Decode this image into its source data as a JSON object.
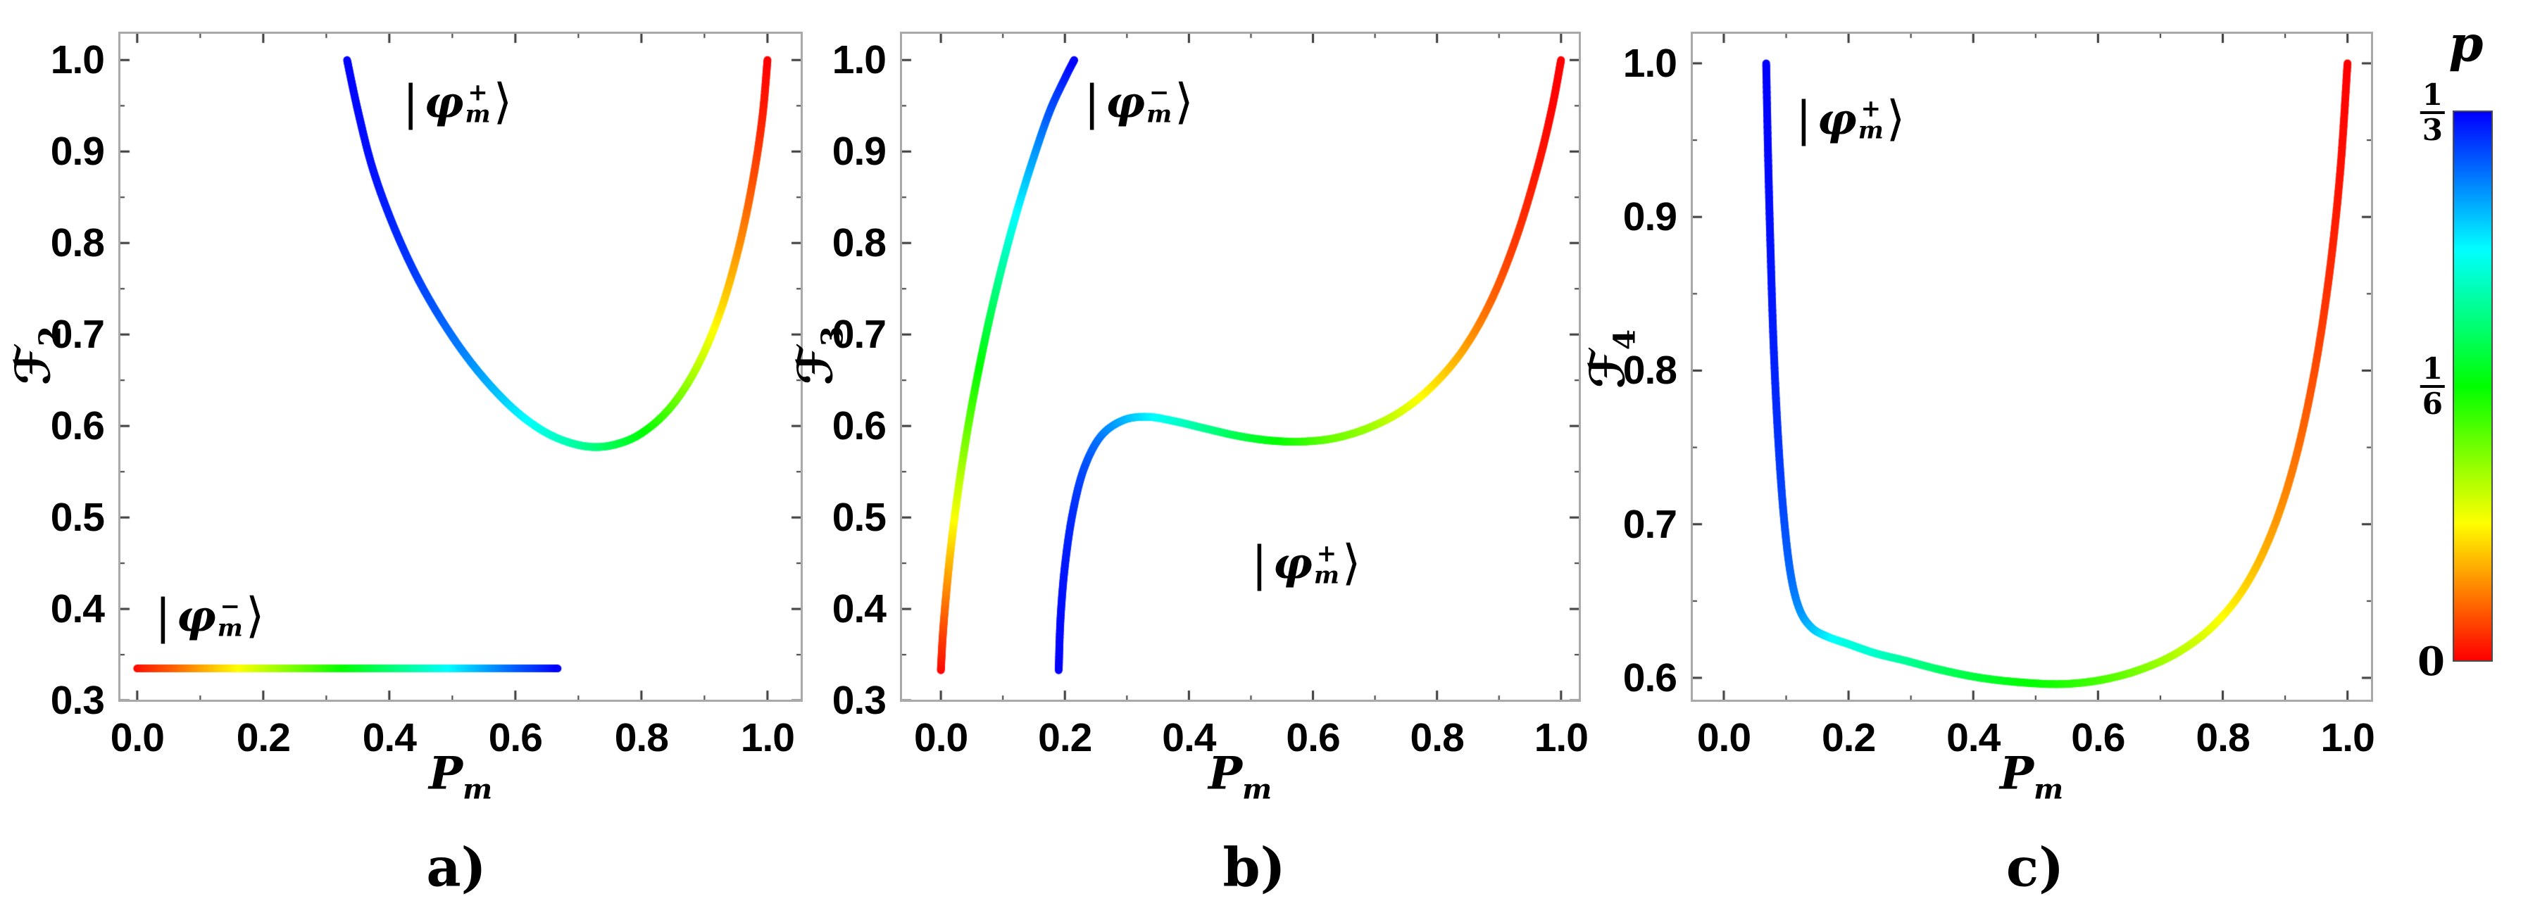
{
  "figure": {
    "background": "#ffffff",
    "panels": [
      {
        "letter": "a)"
      },
      {
        "letter": "b)"
      },
      {
        "letter": "c)"
      }
    ]
  },
  "colorbar": {
    "title": "p",
    "tick_top": {
      "num": "1",
      "den": "3"
    },
    "tick_mid": {
      "num": "1",
      "den": "6"
    },
    "tick_bottom": "0",
    "p_min": 0,
    "p_max": 0.3333,
    "orientation": "vertical",
    "colors_top_to_bottom": [
      "#0000ff",
      "#00ffff",
      "#00ff00",
      "#ffff00",
      "#ff0000"
    ]
  },
  "chart_data": [
    {
      "id": "a",
      "type": "line",
      "title": "",
      "xlabel_base": "P",
      "xlabel_sub": "m",
      "ylabel_base": "ℱ",
      "ylabel_sub": "2",
      "xlim": [
        -0.03,
        1.056
      ],
      "ylim": [
        0.2985,
        1.031
      ],
      "xticks": [
        0,
        0.2,
        0.4,
        0.6,
        0.8,
        1.0
      ],
      "xtick_labels": [
        "0.0",
        "0.2",
        "0.4",
        "0.6",
        "0.8",
        "1.0"
      ],
      "yticks": [
        0.3,
        0.4,
        0.5,
        0.6,
        0.7,
        0.8,
        0.9,
        1.0
      ],
      "ytick_labels": [
        "0.3",
        "0.4",
        "0.5",
        "0.6",
        "0.7",
        "0.8",
        "0.9",
        "1.0"
      ],
      "grid": false,
      "color_parameter": "p",
      "series": [
        {
          "name": "phi_m_plus",
          "ket": {
            "bar": "|",
            "phi": "φ",
            "sub": "m",
            "sup": "+",
            "bracket": "⟩"
          },
          "annotation_pos": {
            "x": 0.508,
            "y": 0.954
          },
          "points": [
            [
              0.333,
              1.0,
              0.333
            ],
            [
              0.35,
              0.945,
              0.331
            ],
            [
              0.372,
              0.885,
              0.328
            ],
            [
              0.4,
              0.83,
              0.323
            ],
            [
              0.435,
              0.775,
              0.316
            ],
            [
              0.473,
              0.727,
              0.306
            ],
            [
              0.515,
              0.683,
              0.293
            ],
            [
              0.558,
              0.646,
              0.277
            ],
            [
              0.603,
              0.615,
              0.258
            ],
            [
              0.648,
              0.593,
              0.24
            ],
            [
              0.69,
              0.581,
              0.224
            ],
            [
              0.728,
              0.577,
              0.208
            ],
            [
              0.765,
              0.581,
              0.19
            ],
            [
              0.8,
              0.592,
              0.172
            ],
            [
              0.838,
              0.614,
              0.148
            ],
            [
              0.872,
              0.645,
              0.122
            ],
            [
              0.903,
              0.686,
              0.096
            ],
            [
              0.932,
              0.739,
              0.07
            ],
            [
              0.958,
              0.805,
              0.046
            ],
            [
              0.978,
              0.873,
              0.026
            ],
            [
              0.992,
              0.938,
              0.011
            ],
            [
              1.0,
              1.0,
              0.0
            ]
          ]
        },
        {
          "name": "phi_m_minus",
          "ket": {
            "bar": "|",
            "phi": "φ",
            "sub": "m",
            "sup": "−",
            "bracket": "⟩"
          },
          "annotation_pos": {
            "x": 0.115,
            "y": 0.392
          },
          "points": [
            [
              0.0,
              0.335,
              0.0
            ],
            [
              0.067,
              0.335,
              0.033
            ],
            [
              0.133,
              0.335,
              0.067
            ],
            [
              0.2,
              0.335,
              0.1
            ],
            [
              0.267,
              0.335,
              0.133
            ],
            [
              0.333,
              0.335,
              0.167
            ],
            [
              0.4,
              0.335,
              0.2
            ],
            [
              0.467,
              0.335,
              0.233
            ],
            [
              0.533,
              0.335,
              0.267
            ],
            [
              0.6,
              0.335,
              0.3
            ],
            [
              0.667,
              0.335,
              0.333
            ]
          ]
        }
      ]
    },
    {
      "id": "b",
      "type": "line",
      "title": "",
      "xlabel_base": "P",
      "xlabel_sub": "m",
      "ylabel_base": "ℱ",
      "ylabel_sub": "3",
      "xlim": [
        -0.066,
        1.032
      ],
      "ylim": [
        0.2985,
        1.031
      ],
      "xticks": [
        0,
        0.2,
        0.4,
        0.6,
        0.8,
        1.0
      ],
      "xtick_labels": [
        "0.0",
        "0.2",
        "0.4",
        "0.6",
        "0.8",
        "1.0"
      ],
      "yticks": [
        0.3,
        0.4,
        0.5,
        0.6,
        0.7,
        0.8,
        0.9,
        1.0
      ],
      "ytick_labels": [
        "0.3",
        "0.4",
        "0.5",
        "0.6",
        "0.7",
        "0.8",
        "0.9",
        "1.0"
      ],
      "grid": false,
      "color_parameter": "p",
      "series": [
        {
          "name": "phi_m_minus",
          "ket": {
            "bar": "|",
            "phi": "φ",
            "sub": "m",
            "sup": "−",
            "bracket": "⟩"
          },
          "annotation_pos": {
            "x": 0.319,
            "y": 0.954
          },
          "points": [
            [
              0.0,
              0.333,
              0.0
            ],
            [
              0.003,
              0.37,
              0.018
            ],
            [
              0.008,
              0.412,
              0.038
            ],
            [
              0.015,
              0.46,
              0.062
            ],
            [
              0.024,
              0.51,
              0.088
            ],
            [
              0.035,
              0.562,
              0.114
            ],
            [
              0.048,
              0.615,
              0.14
            ],
            [
              0.063,
              0.668,
              0.166
            ],
            [
              0.08,
              0.722,
              0.192
            ],
            [
              0.1,
              0.778,
              0.22
            ],
            [
              0.122,
              0.833,
              0.248
            ],
            [
              0.147,
              0.888,
              0.276
            ],
            [
              0.175,
              0.943,
              0.304
            ],
            [
              0.2,
              0.98,
              0.322
            ],
            [
              0.215,
              1.0,
              0.333
            ]
          ]
        },
        {
          "name": "phi_m_plus",
          "ket": {
            "bar": "|",
            "phi": "φ",
            "sub": "m",
            "sup": "+",
            "bracket": "⟩"
          },
          "annotation_pos": {
            "x": 0.589,
            "y": 0.45
          },
          "points": [
            [
              0.19,
              0.333,
              0.333
            ],
            [
              0.193,
              0.39,
              0.33
            ],
            [
              0.2,
              0.447,
              0.326
            ],
            [
              0.212,
              0.503,
              0.32
            ],
            [
              0.23,
              0.552,
              0.31
            ],
            [
              0.257,
              0.588,
              0.296
            ],
            [
              0.293,
              0.606,
              0.278
            ],
            [
              0.333,
              0.61,
              0.258
            ],
            [
              0.378,
              0.605,
              0.237
            ],
            [
              0.428,
              0.597,
              0.215
            ],
            [
              0.48,
              0.589,
              0.193
            ],
            [
              0.533,
              0.584,
              0.172
            ],
            [
              0.585,
              0.583,
              0.152
            ],
            [
              0.637,
              0.587,
              0.131
            ],
            [
              0.69,
              0.598,
              0.118
            ],
            [
              0.742,
              0.616,
              0.098
            ],
            [
              0.793,
              0.644,
              0.077
            ],
            [
              0.843,
              0.684,
              0.055
            ],
            [
              0.888,
              0.738,
              0.034
            ],
            [
              0.928,
              0.806,
              0.018
            ],
            [
              0.962,
              0.882,
              0.008
            ],
            [
              0.985,
              0.946,
              0.002
            ],
            [
              1.0,
              1.0,
              0.0
            ]
          ]
        }
      ]
    },
    {
      "id": "c",
      "type": "line",
      "title": "",
      "xlabel_base": "P",
      "xlabel_sub": "m",
      "ylabel_base": "ℱ",
      "ylabel_sub": "4",
      "xlim": [
        -0.053,
        1.041
      ],
      "ylim": [
        0.5844,
        1.0206
      ],
      "xticks": [
        0,
        0.2,
        0.4,
        0.6,
        0.8,
        1.0
      ],
      "xtick_labels": [
        "0.0",
        "0.2",
        "0.4",
        "0.6",
        "0.8",
        "1.0"
      ],
      "yticks": [
        0.6,
        0.7,
        0.8,
        0.9,
        1.0
      ],
      "ytick_labels": [
        "0.6",
        "0.7",
        "0.8",
        "0.9",
        "1.0"
      ],
      "grid": false,
      "color_parameter": "p",
      "series": [
        {
          "name": "phi_m_plus",
          "ket": {
            "bar": "|",
            "phi": "φ",
            "sub": "m",
            "sup": "+",
            "bracket": "⟩"
          },
          "annotation_pos": {
            "x": 0.203,
            "y": 0.964
          },
          "points": [
            [
              0.068,
              1.0,
              0.333
            ],
            [
              0.071,
              0.94,
              0.331
            ],
            [
              0.075,
              0.878,
              0.328
            ],
            [
              0.08,
              0.815,
              0.324
            ],
            [
              0.087,
              0.757,
              0.318
            ],
            [
              0.096,
              0.706,
              0.31
            ],
            [
              0.107,
              0.668,
              0.3
            ],
            [
              0.121,
              0.645,
              0.288
            ],
            [
              0.14,
              0.633,
              0.274
            ],
            [
              0.165,
              0.627,
              0.258
            ],
            [
              0.2,
              0.622,
              0.24
            ],
            [
              0.243,
              0.616,
              0.235
            ],
            [
              0.293,
              0.611,
              0.218
            ],
            [
              0.35,
              0.605,
              0.2
            ],
            [
              0.412,
              0.6,
              0.185
            ],
            [
              0.478,
              0.597,
              0.17
            ],
            [
              0.545,
              0.596,
              0.158
            ],
            [
              0.61,
              0.599,
              0.143
            ],
            [
              0.672,
              0.606,
              0.126
            ],
            [
              0.73,
              0.617,
              0.108
            ],
            [
              0.785,
              0.634,
              0.09
            ],
            [
              0.835,
              0.659,
              0.071
            ],
            [
              0.878,
              0.694,
              0.054
            ],
            [
              0.915,
              0.74,
              0.039
            ],
            [
              0.946,
              0.797,
              0.026
            ],
            [
              0.97,
              0.86,
              0.015
            ],
            [
              0.988,
              0.928,
              0.006
            ],
            [
              1.0,
              1.0,
              0.0
            ]
          ]
        }
      ]
    }
  ]
}
